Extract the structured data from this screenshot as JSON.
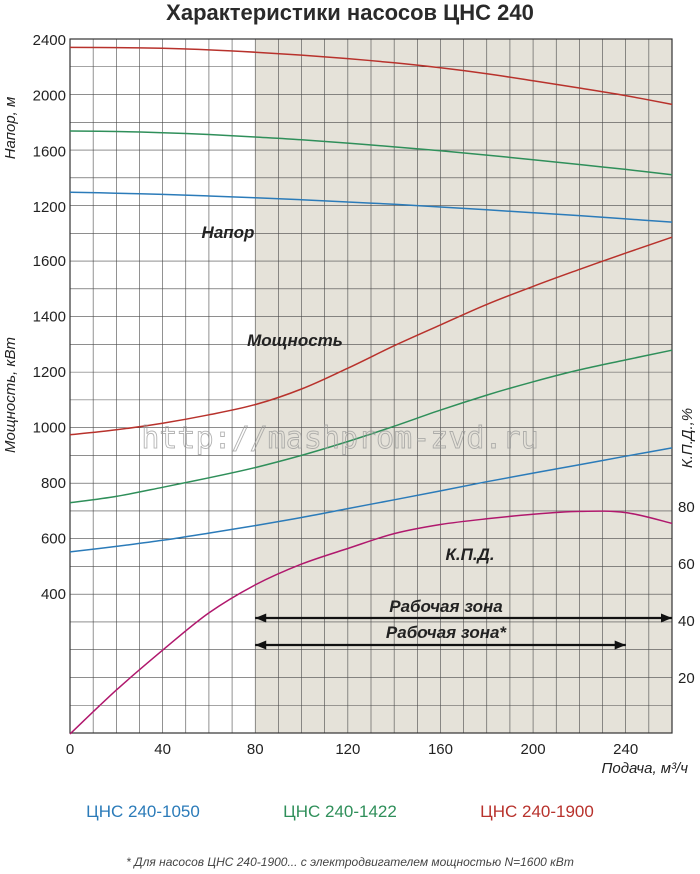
{
  "chart_data": {
    "type": "line",
    "title": "Характеристики насосов ЦНС 240",
    "x": [
      0,
      20,
      40,
      60,
      80,
      100,
      120,
      140,
      160,
      180,
      200,
      220,
      240,
      260
    ],
    "xlim": [
      0,
      260
    ],
    "x_ticks": [
      "0",
      "40",
      "80",
      "120",
      "160",
      "200",
      "240"
    ],
    "xlabel": "Подача, м³/ч",
    "head_axis": {
      "label": "Напор, м",
      "ticks": [
        "1200",
        "1600",
        "2000",
        "2400"
      ],
      "range": [
        1040,
        2440
      ]
    },
    "power_axis": {
      "label": "Мощность, кВт",
      "ticks": [
        "400",
        "600",
        "800",
        "1000",
        "1200",
        "1400",
        "1600"
      ],
      "range": [
        0,
        1700
      ]
    },
    "efficiency_axis": {
      "label": "К.П.Д.,%",
      "ticks": [
        "20",
        "40",
        "60",
        "80"
      ],
      "range": [
        0,
        125
      ]
    },
    "series": [
      {
        "name": "ЦНС 240-1050",
        "quantity": "head",
        "color": "#2b7bb9",
        "values": [
          1299,
          1292,
          1283,
          1272,
          1259,
          1245,
          1229,
          1212,
          1193,
          1173,
          1152,
          1131,
          1107,
          1084
        ]
      },
      {
        "name": "ЦНС 240-1422",
        "quantity": "head",
        "color": "#2f8f5a",
        "values": [
          1739,
          1735,
          1727,
          1714,
          1696,
          1676,
          1652,
          1625,
          1597,
          1566,
          1533,
          1498,
          1463,
          1424
        ]
      },
      {
        "name": "ЦНС 240-1900",
        "quantity": "head",
        "color": "#b8322c",
        "values": [
          2340,
          2338,
          2333,
          2322,
          2305,
          2284,
          2259,
          2229,
          2193,
          2150,
          2100,
          2048,
          1993,
          1930
        ]
      },
      {
        "name": "ЦНС 240-1050",
        "quantity": "power",
        "color": "#2b7bb9",
        "values": [
          548,
          568,
          590,
          616,
          643,
          672,
          704,
          736,
          768,
          801,
          832,
          862,
          893,
          923
        ]
      },
      {
        "name": "ЦНС 240-1422",
        "quantity": "power",
        "color": "#2f8f5a",
        "values": [
          725,
          748,
          781,
          815,
          852,
          896,
          946,
          1001,
          1059,
          1113,
          1161,
          1204,
          1240,
          1275
        ]
      },
      {
        "name": "ЦНС 240-1900",
        "quantity": "power",
        "color": "#b8322c",
        "values": [
          970,
          988,
          1012,
          1042,
          1079,
          1135,
          1210,
          1291,
          1366,
          1440,
          1505,
          1566,
          1625,
          1682
        ]
      },
      {
        "name": "К.П.Д.",
        "quantity": "efficiency",
        "color": "#b0186d",
        "values": [
          0,
          15.4,
          29.4,
          42.5,
          52.3,
          59.6,
          65.1,
          70.3,
          73.5,
          75.5,
          77.1,
          78.1,
          77.7,
          73.9
        ]
      }
    ],
    "annotations": {
      "head_label": "Напор",
      "power_label": "Мощность",
      "efficiency_label": "К.П.Д.",
      "working_zone_label": "Рабочая зона",
      "working_zone_label_starred": "Рабочая зона*",
      "working_zone": [
        80,
        260
      ],
      "working_zone_starred": [
        80,
        240
      ]
    },
    "shaded_region": [
      80,
      260
    ],
    "grid": true,
    "watermark": "http://mashprom-zvd.ru",
    "legend_position": "bottom",
    "legend": [
      "ЦНС 240-1050",
      "ЦНС 240-1422",
      "ЦНС 240-1900"
    ],
    "footnote": "* Для насосов ЦНС 240-1900... с электродвигателем мощностью N=1600 кВт"
  },
  "colors": {
    "blue": "#2b7bb9",
    "green": "#2f8f5a",
    "red": "#b8322c",
    "magenta": "#b0186d",
    "shade": "#e5e2d9",
    "grid": "#4a4a4a"
  }
}
